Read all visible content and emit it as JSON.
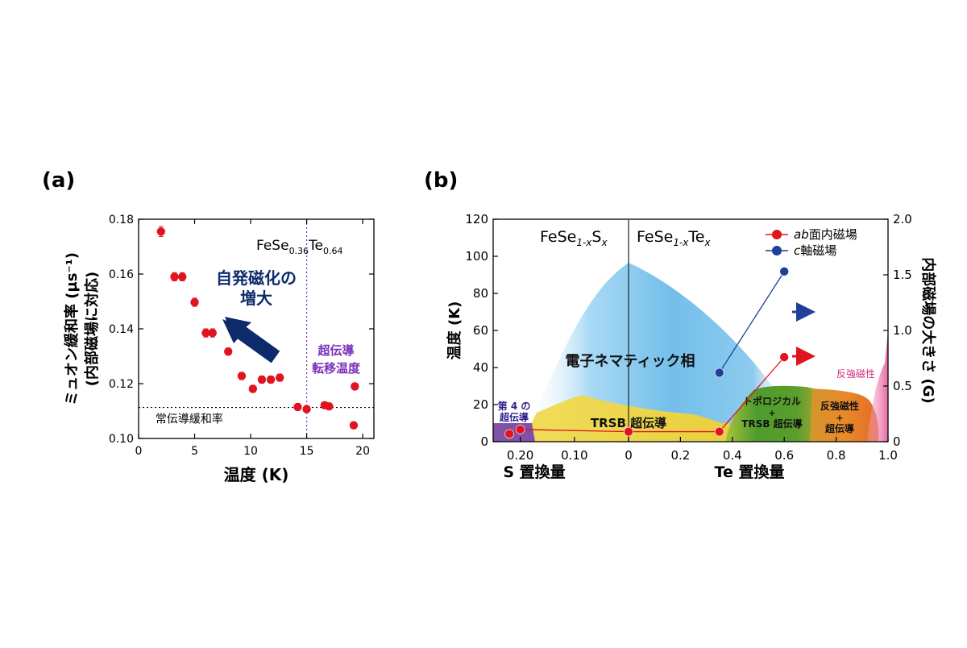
{
  "chart_data": [
    {
      "type": "scatter",
      "panel_label": "(a)",
      "xlabel": "温度 (K)",
      "ylabel": [
        "ミュオン緩和率 (µs⁻¹)",
        "(内部磁場に対応)"
      ],
      "xlim": [
        0,
        21
      ],
      "ylim": [
        0.1,
        0.18
      ],
      "x_ticks": [
        0,
        5,
        10,
        15,
        20
      ],
      "y_ticks": [
        0.1,
        0.12,
        0.14,
        0.16,
        0.18
      ],
      "x_tick_labels": [
        "0",
        "5",
        "10",
        "15",
        "20"
      ],
      "y_tick_labels": [
        "0.10",
        "0.12",
        "0.14",
        "0.16",
        "0.18"
      ],
      "series": [
        {
          "color": "#e0141e",
          "points": [
            {
              "x": 2.0,
              "y": 0.1755,
              "err": 0.0018
            },
            {
              "x": 3.2,
              "y": 0.159,
              "err": 0.0015
            },
            {
              "x": 3.9,
              "y": 0.159,
              "err": 0.0015
            },
            {
              "x": 5.0,
              "y": 0.1497,
              "err": 0.0015
            },
            {
              "x": 6.0,
              "y": 0.1385,
              "err": 0.0015
            },
            {
              "x": 6.6,
              "y": 0.1385,
              "err": 0.0015
            },
            {
              "x": 8.0,
              "y": 0.1317,
              "err": 0.0013
            },
            {
              "x": 9.2,
              "y": 0.1228,
              "err": 0.0013
            },
            {
              "x": 10.2,
              "y": 0.1181,
              "err": 0.0013
            },
            {
              "x": 11.0,
              "y": 0.1215,
              "err": 0.0013
            },
            {
              "x": 11.8,
              "y": 0.1215,
              "err": 0.0013
            },
            {
              "x": 12.6,
              "y": 0.1222,
              "err": 0.0013
            },
            {
              "x": 14.2,
              "y": 0.1115,
              "err": 0.0012
            },
            {
              "x": 15.0,
              "y": 0.1107,
              "err": 0.0012
            },
            {
              "x": 16.6,
              "y": 0.1121,
              "err": 0.0012
            },
            {
              "x": 17.0,
              "y": 0.1117,
              "err": 0.0012
            },
            {
              "x": 19.2,
              "y": 0.1048,
              "err": 0.0012
            },
            {
              "x": 19.3,
              "y": 0.119,
              "err": 0.0012
            }
          ]
        }
      ],
      "reference_lines": [
        {
          "orientation": "horizontal",
          "value": 0.1113,
          "style": "dotted",
          "color": "#000000",
          "label": "常伝導緩和率"
        },
        {
          "orientation": "vertical",
          "value": 15.0,
          "style": "dotted",
          "color": "#7a2fb8",
          "label": [
            "超伝導",
            "転移温度"
          ]
        }
      ],
      "annotations": {
        "compound": {
          "base": "FeSe",
          "sub1": "0.36",
          "mid": "Te",
          "sub2": "0.64"
        },
        "arrow_label": [
          "自発磁化の",
          "増大"
        ],
        "arrow_color": "#0d2b6b"
      }
    },
    {
      "type": "phase_diagram",
      "panel_label": "(b)",
      "left_ylabel": "温度 (K)",
      "right_ylabel": "内部磁場の大きさ (G)",
      "left_ylim": [
        0,
        120
      ],
      "right_ylim": [
        0,
        2.0
      ],
      "left_ticks": [
        "0",
        "20",
        "40",
        "60",
        "80",
        "100",
        "120"
      ],
      "right_ticks": [
        "0",
        "0.5",
        "1.0",
        "1.5",
        "2.0"
      ],
      "s_axis": {
        "label": "S 置換量",
        "ticks": [
          "0.20",
          "0.10",
          "0"
        ]
      },
      "te_axis": {
        "label": "Te 置換量",
        "ticks": [
          "0.2",
          "0.4",
          "0.6",
          "0.8",
          "1.0"
        ]
      },
      "section_titles": {
        "left": {
          "base": "FeSe",
          "sub": "1-x",
          "end": "S",
          "endsub": "x"
        },
        "right": {
          "base": "FeSe",
          "sub": "1-x",
          "end": "Te",
          "endsub": "x"
        }
      },
      "legend": {
        "placement": "top-right",
        "items": [
          {
            "italic": "ab",
            "text": "面内磁場",
            "color": "#e0141e"
          },
          {
            "italic": "c",
            "text": "軸磁場",
            "color": "#1f3f99"
          }
        ]
      },
      "regions": [
        {
          "label": "電子ネマティック相",
          "color": "#7cc4ec"
        },
        {
          "label": "TRSB 超伝導",
          "color": "#e8cf3e"
        },
        {
          "label": [
            "第 4 の",
            "超伝導"
          ],
          "color": "#7f52a8"
        },
        {
          "label": [
            "トポロジカル",
            "+",
            "TRSB 超伝導"
          ],
          "color": "#4f9c2e"
        },
        {
          "label": [
            "反強磁性",
            "+",
            "超伝導"
          ],
          "color": "#e98a2a"
        },
        {
          "label": "反強磁性",
          "color": "#e86aa3"
        }
      ],
      "ab_field_series": {
        "color": "#e0141e",
        "axis_side": "right",
        "points": [
          {
            "axis": "S",
            "x": 0.22,
            "y": 0.07
          },
          {
            "axis": "S",
            "x": 0.2,
            "y": 0.11
          },
          {
            "axis": "Te",
            "x": 0.0,
            "y": 0.09
          },
          {
            "axis": "Te",
            "x": 0.35,
            "y": 0.09
          },
          {
            "axis": "Te",
            "x": 0.6,
            "y": 0.76
          }
        ]
      },
      "c_field_series": {
        "color": "#1f3f99",
        "axis_side": "right",
        "points": [
          {
            "axis": "Te",
            "x": 0.35,
            "y": 0.62
          },
          {
            "axis": "Te",
            "x": 0.6,
            "y": 1.53
          }
        ]
      }
    }
  ]
}
